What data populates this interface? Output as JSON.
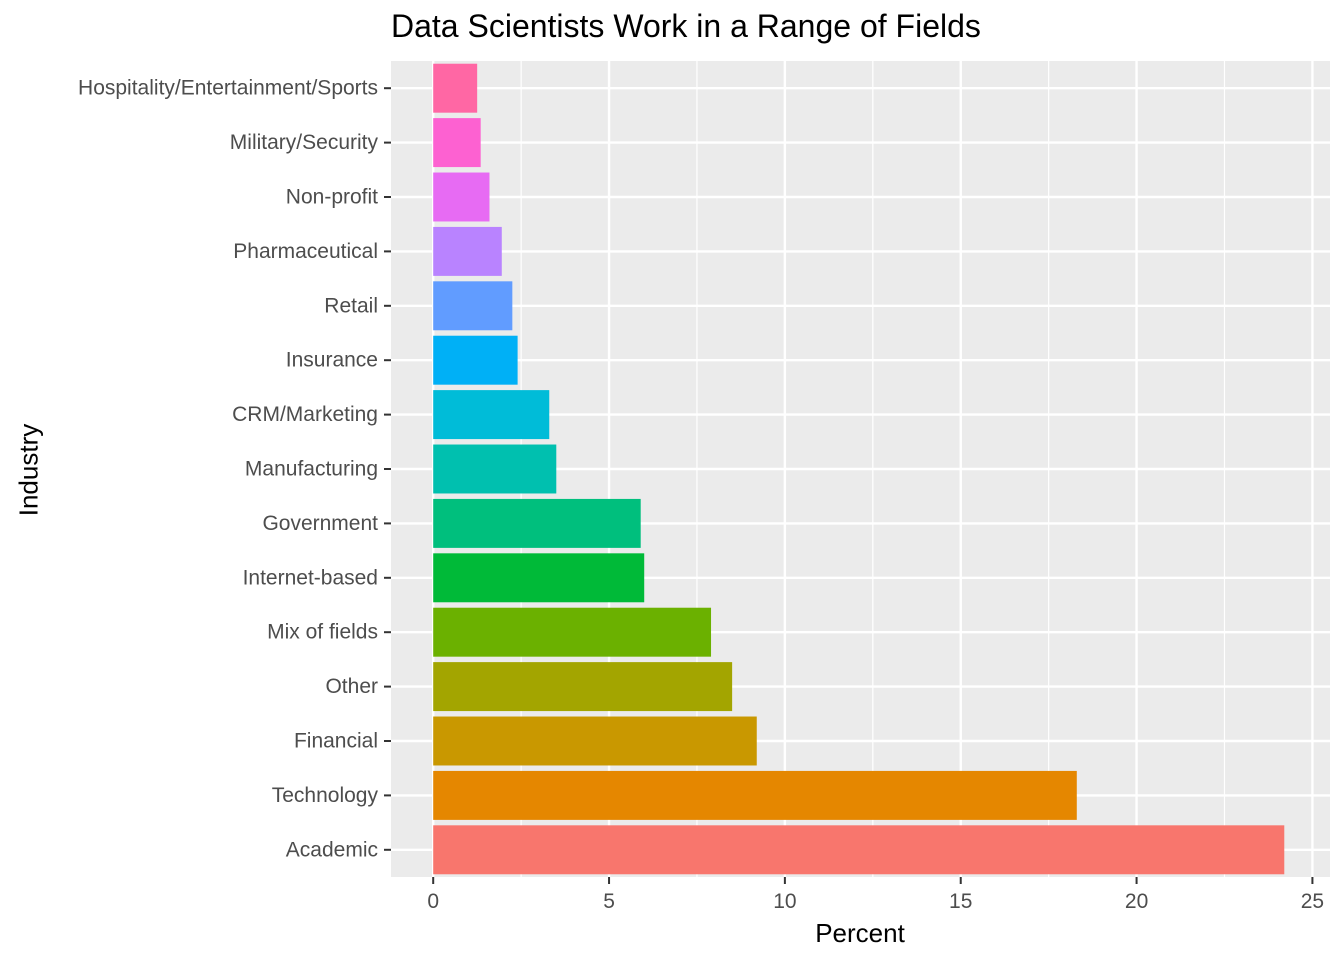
{
  "chart_data": {
    "type": "bar",
    "orientation": "horizontal",
    "title": "Data Scientists Work in a Range of Fields",
    "xlabel": "Percent",
    "ylabel": "Industry",
    "xlim": [
      -1.2,
      25.5
    ],
    "x_ticks": [
      0,
      5,
      10,
      15,
      20,
      25
    ],
    "x_tick_labels": [
      "0",
      "5",
      "10",
      "15",
      "20",
      "25"
    ],
    "grid": true,
    "legend": "none",
    "panel_background": "#EBEBEB",
    "categories": [
      "Academic",
      "Technology",
      "Financial",
      "Other",
      "Mix of fields",
      "Internet-based",
      "Government",
      "Manufacturing",
      "CRM/Marketing",
      "Insurance",
      "Retail",
      "Pharmaceutical",
      "Non-profit",
      "Military/Security",
      "Hospitality/Entertainment/Sports"
    ],
    "values": [
      24.2,
      18.3,
      9.2,
      8.5,
      7.9,
      6.0,
      5.9,
      3.5,
      3.3,
      2.4,
      2.25,
      1.95,
      1.6,
      1.35,
      1.25
    ],
    "colors": [
      "#F8766D",
      "#E58700",
      "#C99800",
      "#A3A500",
      "#6BB100",
      "#00BA38",
      "#00BF7D",
      "#00C0AF",
      "#00BCD8",
      "#00B0F6",
      "#619CFF",
      "#B983FF",
      "#E76BF3",
      "#FD61D1",
      "#FF67A4"
    ]
  }
}
